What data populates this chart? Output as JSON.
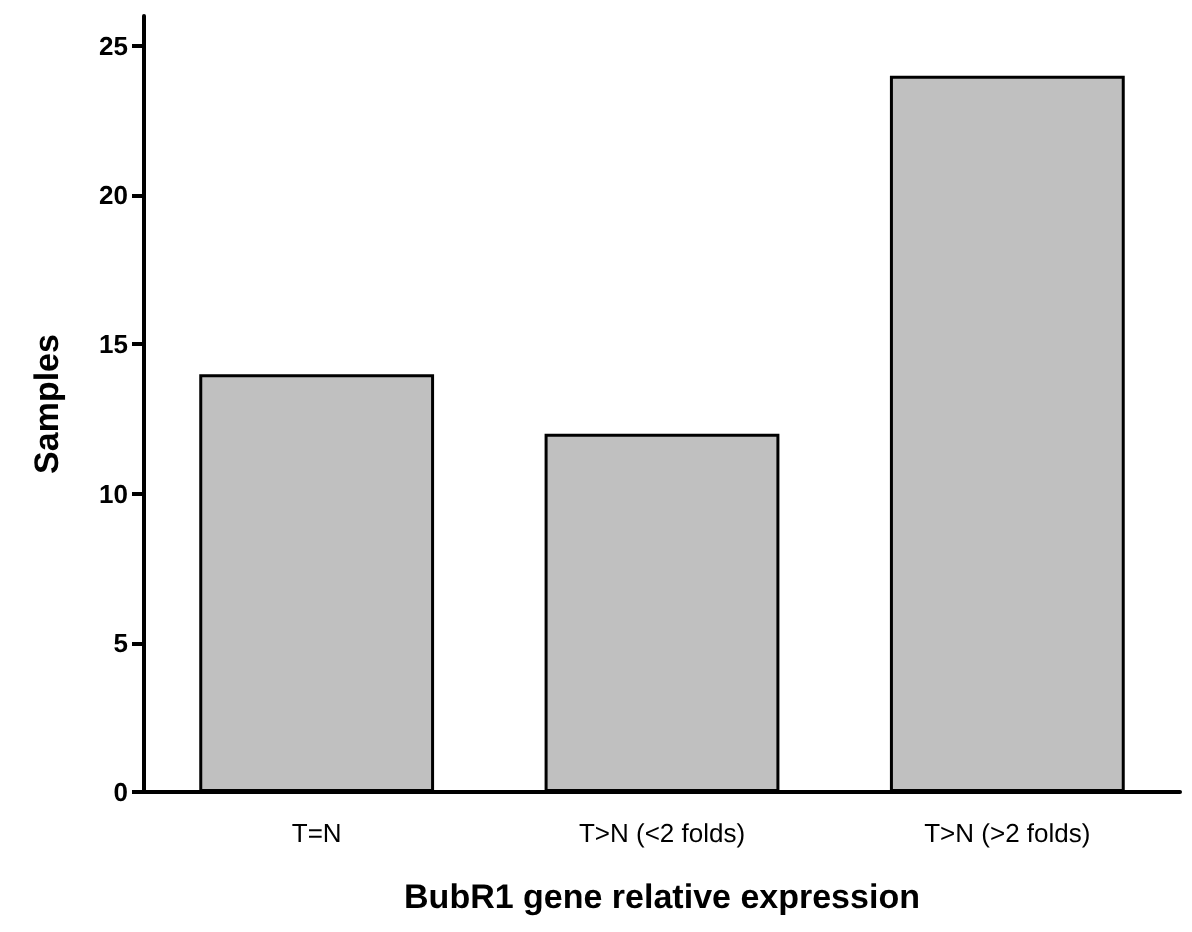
{
  "chart_data": {
    "type": "bar",
    "xlabel": "BubR1 gene relative expression",
    "ylabel": "Samples",
    "categories": [
      "T=N",
      "T>N (<2 folds)",
      "T>N (>2 folds)"
    ],
    "values": [
      14,
      12,
      24
    ],
    "color": "#c0c0c0",
    "ylim": [
      0,
      26
    ],
    "yticks": [
      0,
      5,
      10,
      15,
      20,
      25
    ],
    "grid": false
  }
}
